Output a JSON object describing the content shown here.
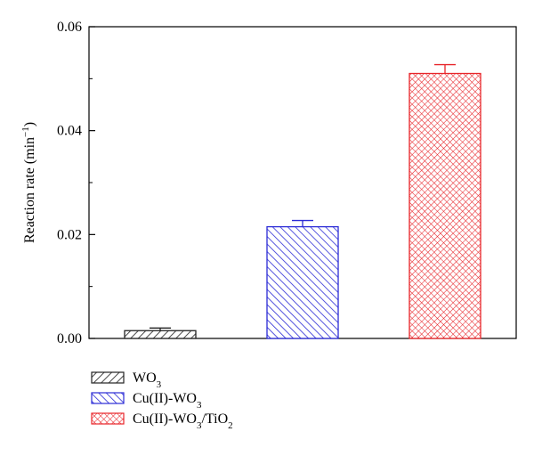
{
  "chart_data": {
    "type": "bar",
    "ylabel": "Reaction rate (min",
    "ylabel_sup": "−1",
    "ylabel_end": ")",
    "ylim": [
      0,
      0.06
    ],
    "yticks": [
      "0.00",
      "0.02",
      "0.04",
      "0.06"
    ],
    "grid": false,
    "legend_position": "bottom-left",
    "series": [
      {
        "key": "wo3",
        "value": 0.0015,
        "error": 0.0005,
        "color": "#222222",
        "pattern": "diagonal-right",
        "label_parts": [
          {
            "text": "WO"
          },
          {
            "text": "3",
            "sub": true
          }
        ]
      },
      {
        "key": "cu-wo3",
        "value": 0.0215,
        "error": 0.0012,
        "color": "#2b2bd6",
        "pattern": "diagonal-left",
        "label_parts": [
          {
            "text": "Cu(II)-WO"
          },
          {
            "text": "3",
            "sub": true
          }
        ]
      },
      {
        "key": "cu-wo3-tio2",
        "value": 0.051,
        "error": 0.0017,
        "color": "#e8252a",
        "pattern": "crosshatch",
        "label_parts": [
          {
            "text": "Cu(II)-WO"
          },
          {
            "text": "3",
            "sub": true
          },
          {
            "text": "/TiO"
          },
          {
            "text": "2",
            "sub": true
          }
        ]
      }
    ]
  }
}
